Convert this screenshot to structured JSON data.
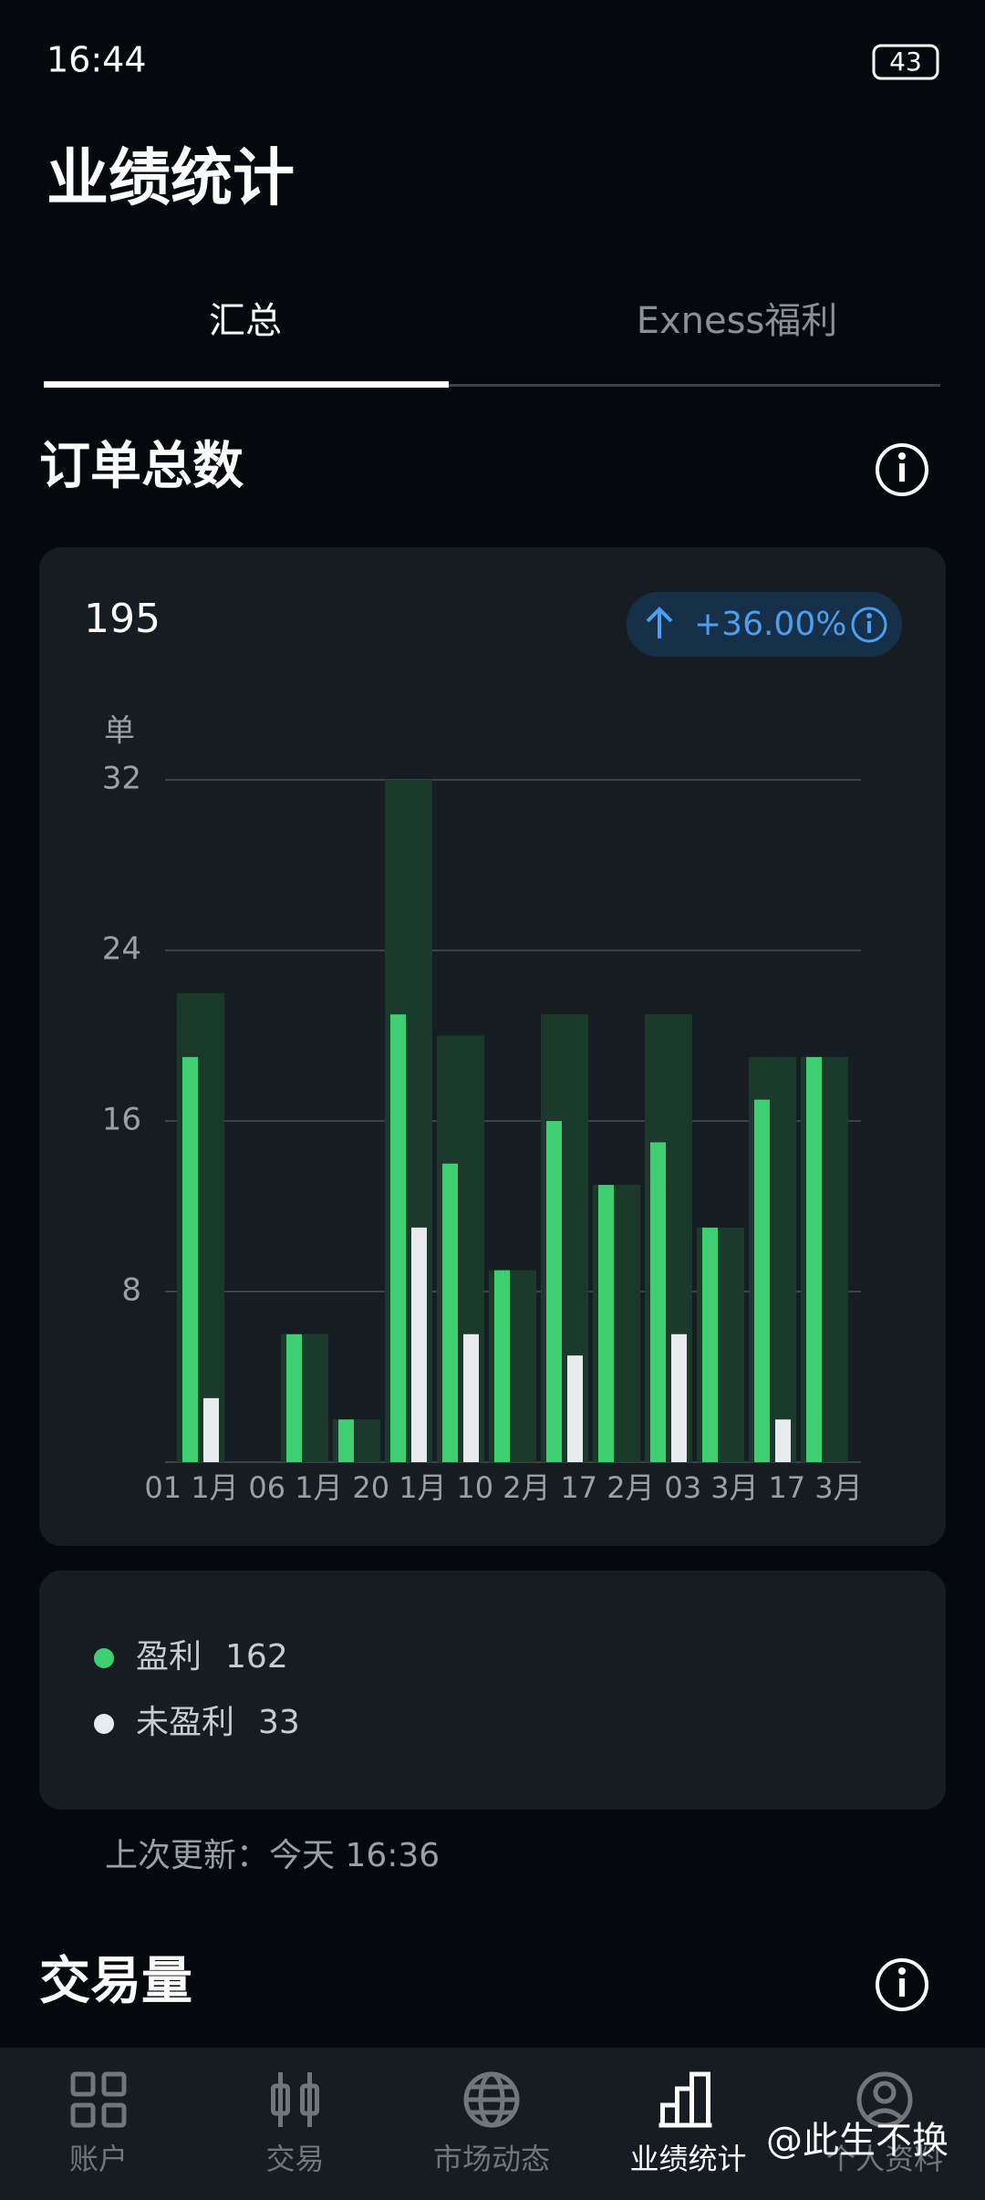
{
  "status_bar": {
    "time": "16:44",
    "battery": "43"
  },
  "header": {
    "title": "业绩统计"
  },
  "tabs": [
    "汇总",
    "Exness福利"
  ],
  "section": {
    "title": "订单总数"
  },
  "summary": {
    "total": "195",
    "change": "+36.00%"
  },
  "chart_data": {
    "type": "bar",
    "y_label": "单",
    "categories": [
      "01 1月",
      null,
      "06 1月",
      null,
      "20 1月",
      null,
      "10 2月",
      null,
      "17 2月",
      null,
      "03 3月",
      null,
      "17 3月"
    ],
    "series": [
      {
        "name": "盈利",
        "color": "#3ecf72",
        "values": [
          19,
          0,
          6,
          2,
          21,
          14,
          9,
          16,
          13,
          15,
          11,
          17,
          19
        ]
      },
      {
        "name": "未盈利",
        "color": "#e8eaee",
        "values": [
          3,
          0,
          0,
          0,
          11,
          6,
          0,
          5,
          0,
          6,
          0,
          2,
          0
        ]
      }
    ],
    "total_color": "#1c3a2c",
    "ylim": [
      0,
      32
    ],
    "yticks": [
      8,
      16,
      24,
      32
    ],
    "grid": true
  },
  "legend": {
    "totals": [
      162,
      33
    ]
  },
  "updated": "上次更新：今天 16:36",
  "next_section": {
    "title": "交易量"
  },
  "nav": [
    "账户",
    "交易",
    "市场动态",
    "业绩统计",
    "个人资料"
  ],
  "nav_active": 3,
  "watermark": "@此生不换"
}
